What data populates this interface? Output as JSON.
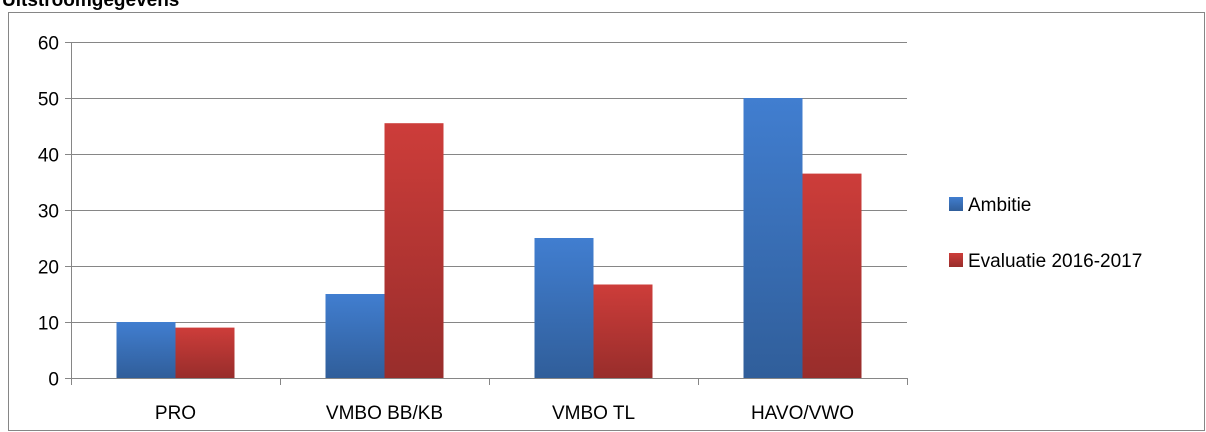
{
  "page_title": "Uitstroomgegevens",
  "chart_data": {
    "type": "bar",
    "categories": [
      "PRO",
      "VMBO BB/KB",
      "VMBO TL",
      "HAVO/VWO"
    ],
    "series": [
      {
        "name": "Ambitie",
        "values": [
          10,
          15,
          25,
          50
        ],
        "color": "#3e78c6"
      },
      {
        "name": "Evaluatie 2016-2017",
        "values": [
          9,
          45.5,
          16.7,
          36.5
        ],
        "color": "#c33a37"
      }
    ],
    "ylim": [
      0,
      60
    ],
    "yticks": [
      0,
      10,
      20,
      30,
      40,
      50,
      60
    ],
    "grid": true,
    "legend_position": "right"
  }
}
